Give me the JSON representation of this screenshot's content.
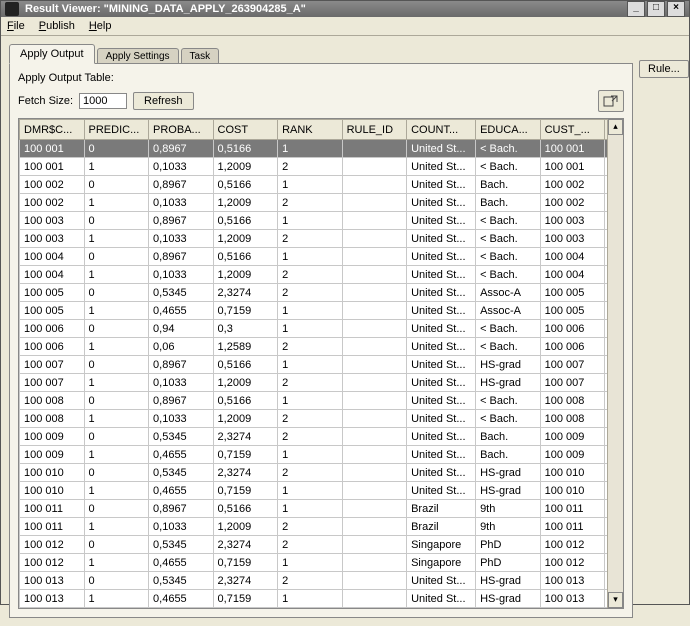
{
  "window": {
    "title": "Result Viewer: \"MINING_DATA_APPLY_263904285_A\"",
    "controls": {
      "min": "_",
      "max": "□",
      "close": "×"
    }
  },
  "menu": {
    "file": "File",
    "publish": "Publish",
    "help": "Help"
  },
  "tabs": {
    "apply_output": "Apply Output",
    "apply_settings": "Apply Settings",
    "task": "Task"
  },
  "panel": {
    "label": "Apply Output Table:",
    "fetch_label": "Fetch Size:",
    "fetch_value": "1000",
    "refresh": "Refresh"
  },
  "rule_button": "Rule...",
  "table": {
    "columns": [
      "DMR$C...",
      "PREDIC...",
      "PROBA...",
      "COST",
      "RANK",
      "RULE_ID",
      "COUNT...",
      "EDUCA...",
      "CUST_..."
    ],
    "rows": [
      [
        "100 001",
        "0",
        "0,8967",
        "0,5166",
        "1",
        "",
        "United St...",
        "< Bach.",
        "100 001"
      ],
      [
        "100 001",
        "1",
        "0,1033",
        "1,2009",
        "2",
        "",
        "United St...",
        "< Bach.",
        "100 001"
      ],
      [
        "100 002",
        "0",
        "0,8967",
        "0,5166",
        "1",
        "",
        "United St...",
        "Bach.",
        "100 002"
      ],
      [
        "100 002",
        "1",
        "0,1033",
        "1,2009",
        "2",
        "",
        "United St...",
        "Bach.",
        "100 002"
      ],
      [
        "100 003",
        "0",
        "0,8967",
        "0,5166",
        "1",
        "",
        "United St...",
        "< Bach.",
        "100 003"
      ],
      [
        "100 003",
        "1",
        "0,1033",
        "1,2009",
        "2",
        "",
        "United St...",
        "< Bach.",
        "100 003"
      ],
      [
        "100 004",
        "0",
        "0,8967",
        "0,5166",
        "1",
        "",
        "United St...",
        "< Bach.",
        "100 004"
      ],
      [
        "100 004",
        "1",
        "0,1033",
        "1,2009",
        "2",
        "",
        "United St...",
        "< Bach.",
        "100 004"
      ],
      [
        "100 005",
        "0",
        "0,5345",
        "2,3274",
        "2",
        "",
        "United St...",
        "Assoc-A",
        "100 005"
      ],
      [
        "100 005",
        "1",
        "0,4655",
        "0,7159",
        "1",
        "",
        "United St...",
        "Assoc-A",
        "100 005"
      ],
      [
        "100 006",
        "0",
        "0,94",
        "0,3",
        "1",
        "",
        "United St...",
        "< Bach.",
        "100 006"
      ],
      [
        "100 006",
        "1",
        "0,06",
        "1,2589",
        "2",
        "",
        "United St...",
        "< Bach.",
        "100 006"
      ],
      [
        "100 007",
        "0",
        "0,8967",
        "0,5166",
        "1",
        "",
        "United St...",
        "HS-grad",
        "100 007"
      ],
      [
        "100 007",
        "1",
        "0,1033",
        "1,2009",
        "2",
        "",
        "United St...",
        "HS-grad",
        "100 007"
      ],
      [
        "100 008",
        "0",
        "0,8967",
        "0,5166",
        "1",
        "",
        "United St...",
        "< Bach.",
        "100 008"
      ],
      [
        "100 008",
        "1",
        "0,1033",
        "1,2009",
        "2",
        "",
        "United St...",
        "< Bach.",
        "100 008"
      ],
      [
        "100 009",
        "0",
        "0,5345",
        "2,3274",
        "2",
        "",
        "United St...",
        "Bach.",
        "100 009"
      ],
      [
        "100 009",
        "1",
        "0,4655",
        "0,7159",
        "1",
        "",
        "United St...",
        "Bach.",
        "100 009"
      ],
      [
        "100 010",
        "0",
        "0,5345",
        "2,3274",
        "2",
        "",
        "United St...",
        "HS-grad",
        "100 010"
      ],
      [
        "100 010",
        "1",
        "0,4655",
        "0,7159",
        "1",
        "",
        "United St...",
        "HS-grad",
        "100 010"
      ],
      [
        "100 011",
        "0",
        "0,8967",
        "0,5166",
        "1",
        "",
        "Brazil",
        "9th",
        "100 011"
      ],
      [
        "100 011",
        "1",
        "0,1033",
        "1,2009",
        "2",
        "",
        "Brazil",
        "9th",
        "100 011"
      ],
      [
        "100 012",
        "0",
        "0,5345",
        "2,3274",
        "2",
        "",
        "Singapore",
        "PhD",
        "100 012"
      ],
      [
        "100 012",
        "1",
        "0,4655",
        "0,7159",
        "1",
        "",
        "Singapore",
        "PhD",
        "100 012"
      ],
      [
        "100 013",
        "0",
        "0,5345",
        "2,3274",
        "2",
        "",
        "United St...",
        "HS-grad",
        "100 013"
      ],
      [
        "100 013",
        "1",
        "0,4655",
        "0,7159",
        "1",
        "",
        "United St...",
        "HS-grad",
        "100 013"
      ]
    ],
    "selected_row": 0
  }
}
